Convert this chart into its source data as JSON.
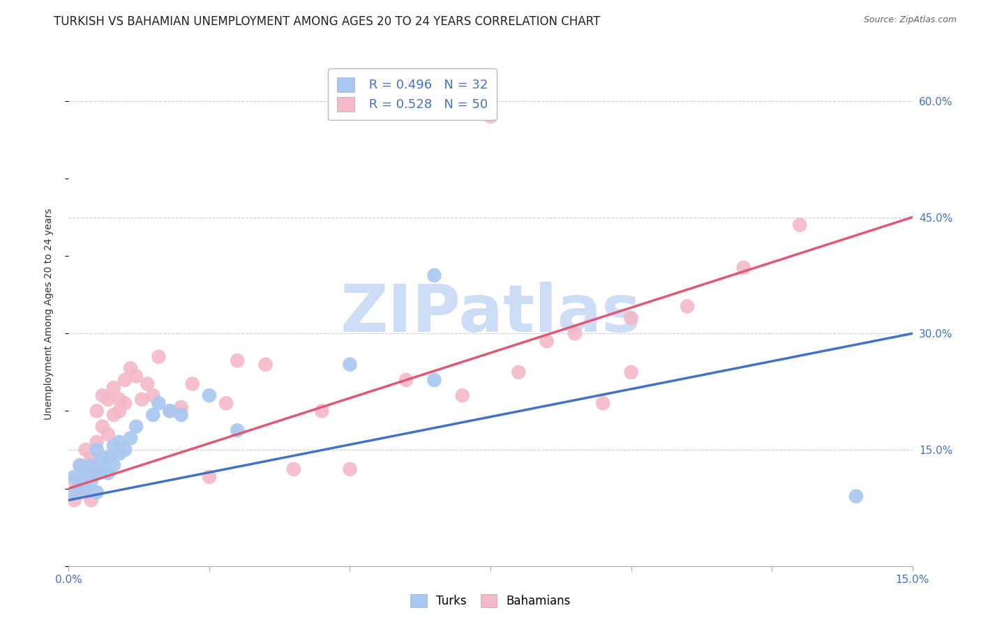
{
  "title": "TURKISH VS BAHAMIAN UNEMPLOYMENT AMONG AGES 20 TO 24 YEARS CORRELATION CHART",
  "source": "Source: ZipAtlas.com",
  "ylabel": "Unemployment Among Ages 20 to 24 years",
  "xlim": [
    0.0,
    0.15
  ],
  "ylim": [
    0.0,
    0.65
  ],
  "xticks": [
    0.0,
    0.025,
    0.05,
    0.075,
    0.1,
    0.125,
    0.15
  ],
  "yticks_right": [
    0.15,
    0.3,
    0.45,
    0.6
  ],
  "ytick_labels_right": [
    "15.0%",
    "30.0%",
    "45.0%",
    "60.0%"
  ],
  "turks_color": "#a8c8f0",
  "turks_line_color": "#4472c4",
  "bahamians_color": "#f4b8c8",
  "bahamians_line_color": "#e05878",
  "turks_R": "0.496",
  "turks_N": "32",
  "bahamians_R": "0.528",
  "bahamians_N": "50",
  "watermark_text": "ZIPatlas",
  "watermark_color": "#ccddf5",
  "turks_x": [
    0.001,
    0.001,
    0.002,
    0.002,
    0.003,
    0.003,
    0.004,
    0.004,
    0.005,
    0.005,
    0.005,
    0.006,
    0.006,
    0.007,
    0.007,
    0.008,
    0.008,
    0.009,
    0.009,
    0.01,
    0.011,
    0.012,
    0.015,
    0.016,
    0.018,
    0.02,
    0.025,
    0.03,
    0.05,
    0.065,
    0.065,
    0.14
  ],
  "turks_y": [
    0.095,
    0.115,
    0.105,
    0.13,
    0.12,
    0.1,
    0.13,
    0.11,
    0.15,
    0.12,
    0.095,
    0.14,
    0.125,
    0.14,
    0.12,
    0.155,
    0.13,
    0.16,
    0.145,
    0.15,
    0.165,
    0.18,
    0.195,
    0.21,
    0.2,
    0.195,
    0.22,
    0.175,
    0.26,
    0.375,
    0.24,
    0.09
  ],
  "bahamians_x": [
    0.001,
    0.001,
    0.002,
    0.002,
    0.003,
    0.003,
    0.003,
    0.004,
    0.004,
    0.005,
    0.005,
    0.005,
    0.006,
    0.006,
    0.007,
    0.007,
    0.008,
    0.008,
    0.009,
    0.009,
    0.01,
    0.01,
    0.011,
    0.012,
    0.013,
    0.014,
    0.015,
    0.016,
    0.018,
    0.02,
    0.022,
    0.025,
    0.028,
    0.03,
    0.035,
    0.04,
    0.045,
    0.05,
    0.06,
    0.07,
    0.08,
    0.085,
    0.09,
    0.095,
    0.1,
    0.1,
    0.11,
    0.12,
    0.13,
    0.075
  ],
  "bahamians_y": [
    0.085,
    0.11,
    0.095,
    0.13,
    0.12,
    0.15,
    0.095,
    0.14,
    0.085,
    0.16,
    0.2,
    0.125,
    0.22,
    0.18,
    0.215,
    0.17,
    0.195,
    0.23,
    0.215,
    0.2,
    0.24,
    0.21,
    0.255,
    0.245,
    0.215,
    0.235,
    0.22,
    0.27,
    0.2,
    0.205,
    0.235,
    0.115,
    0.21,
    0.265,
    0.26,
    0.125,
    0.2,
    0.125,
    0.24,
    0.22,
    0.25,
    0.29,
    0.3,
    0.21,
    0.25,
    0.32,
    0.335,
    0.385,
    0.44,
    0.58
  ],
  "title_fontsize": 12,
  "axis_label_fontsize": 10,
  "tick_fontsize": 11,
  "legend_fontsize": 13
}
